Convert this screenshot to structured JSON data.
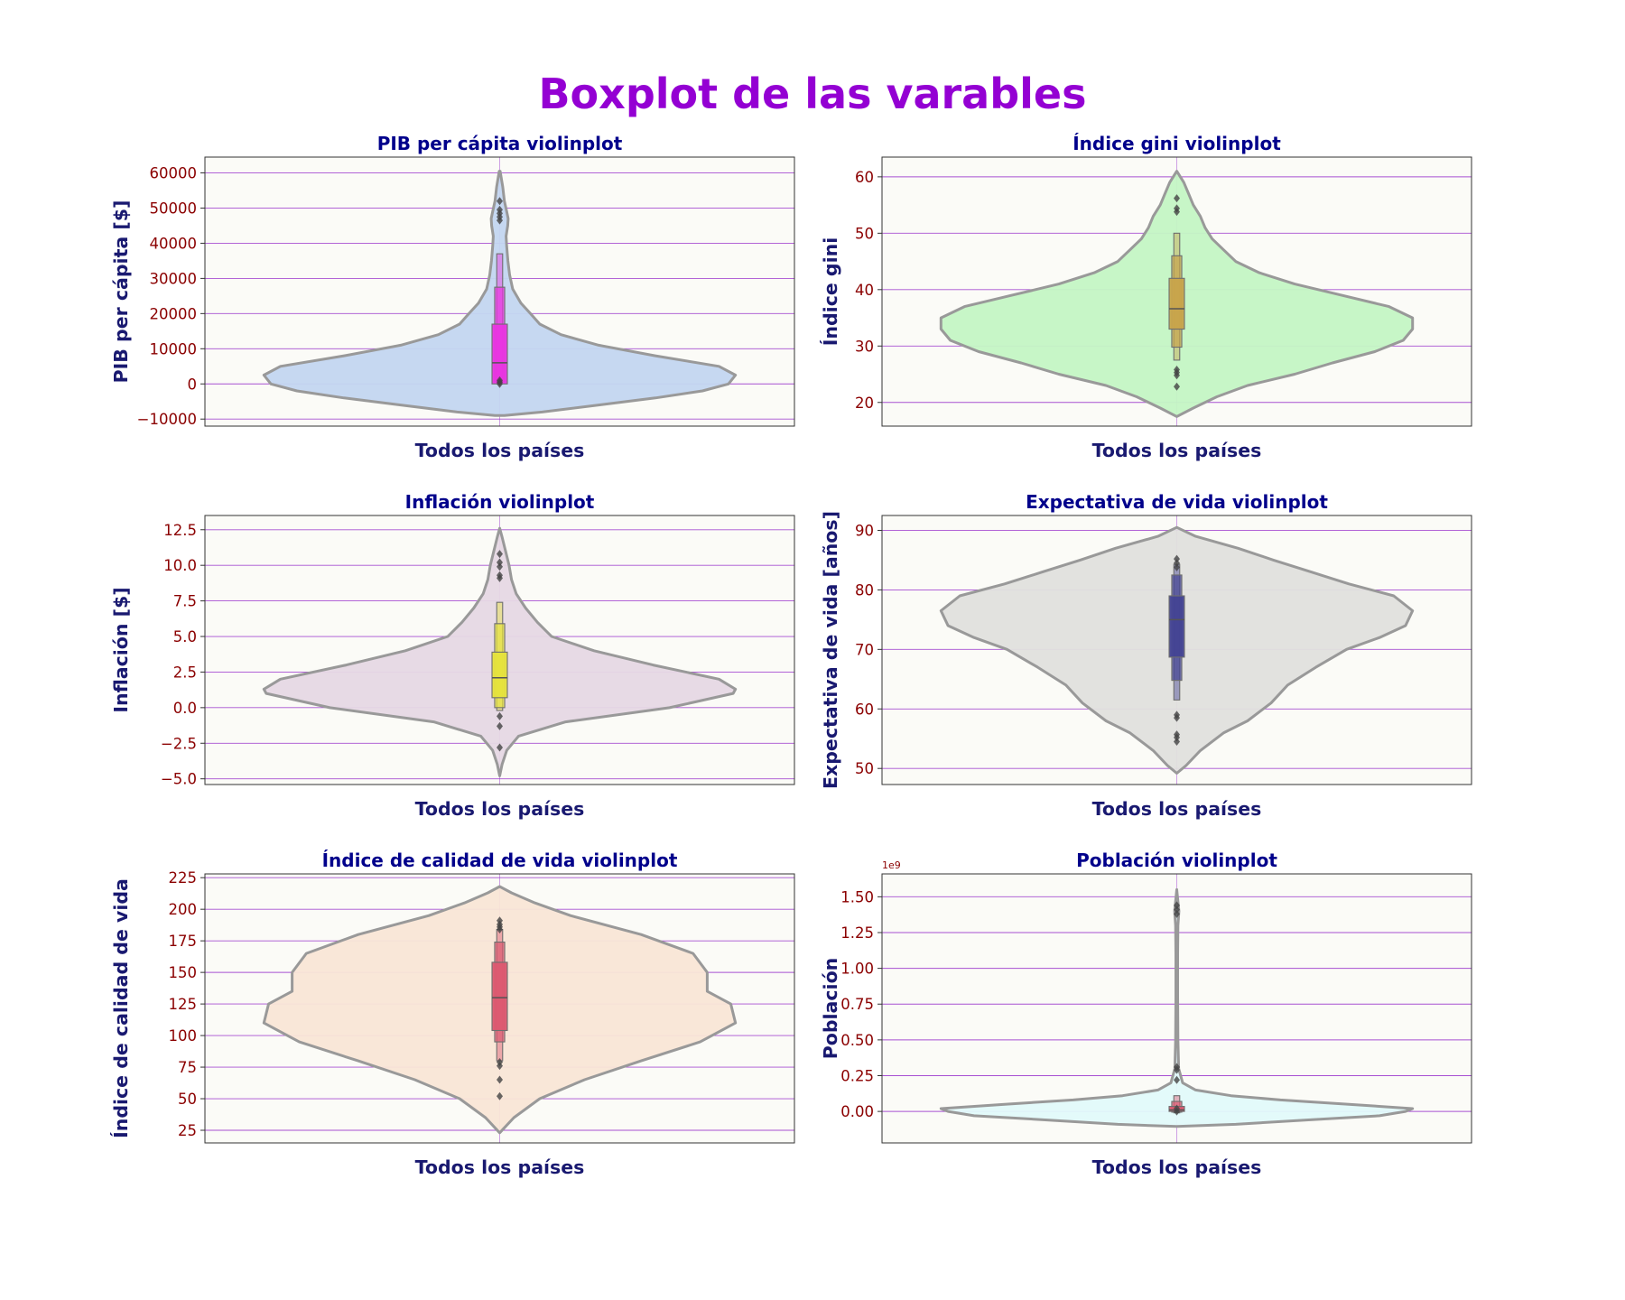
{
  "figure": {
    "title": "Boxplot de las varables",
    "title_color": "#9400d3",
    "panel_title_color": "#00008b",
    "axis_label_color": "#191970",
    "tick_color": "#8b0000",
    "grid_color": "#9932cc",
    "panel_bg": "#fbfbf7"
  },
  "chart_data": [
    {
      "type": "violin",
      "title": "PIB per cápita violinplot",
      "xlabel": "Todos los países",
      "ylabel": "PIB per cápita [$]",
      "ylim": [
        -12000,
        64500
      ],
      "yticks": [
        -10000,
        0,
        10000,
        20000,
        30000,
        40000,
        50000,
        60000
      ],
      "tick_labels": [
        "−10000",
        "0",
        "10000",
        "20000",
        "30000",
        "40000",
        "50000",
        "60000"
      ],
      "offset_label": "",
      "violin_color": "#c3d6f0",
      "box_color": "#e935e0",
      "violin_shape": [
        [
          -9000,
          0.02
        ],
        [
          -8000,
          0.18
        ],
        [
          -6000,
          0.42
        ],
        [
          -4000,
          0.66
        ],
        [
          -2000,
          0.86
        ],
        [
          0,
          0.97
        ],
        [
          2500,
          1.0
        ],
        [
          5000,
          0.93
        ],
        [
          8000,
          0.66
        ],
        [
          11000,
          0.42
        ],
        [
          14000,
          0.26
        ],
        [
          17000,
          0.17
        ],
        [
          20000,
          0.13
        ],
        [
          23000,
          0.09
        ],
        [
          27000,
          0.055
        ],
        [
          31000,
          0.042
        ],
        [
          35000,
          0.035
        ],
        [
          39000,
          0.03
        ],
        [
          42000,
          0.027
        ],
        [
          45000,
          0.034
        ],
        [
          47000,
          0.036
        ],
        [
          49000,
          0.03
        ],
        [
          52000,
          0.02
        ],
        [
          56000,
          0.013
        ],
        [
          60500,
          0.002
        ]
      ],
      "quantiles": [
        [
          0,
          17000,
          0.026
        ],
        [
          700,
          27500,
          0.017
        ],
        [
          300,
          37000,
          0.01
        ]
      ],
      "median": 6000,
      "outliers": [
        0,
        500,
        1000,
        46500,
        47500,
        48500,
        49500,
        52000
      ]
    },
    {
      "type": "violin",
      "title": "Índice gini violinplot",
      "xlabel": "Todos los países",
      "ylabel": "Índice gini",
      "ylim": [
        15.8,
        63.5
      ],
      "yticks": [
        20,
        30,
        40,
        50,
        60
      ],
      "tick_labels": [
        "20",
        "30",
        "40",
        "50",
        "60"
      ],
      "offset_label": "",
      "violin_color": "#c4f5c4",
      "box_color": "#c8a44b",
      "violin_shape": [
        [
          17.5,
          0.0
        ],
        [
          19,
          0.07
        ],
        [
          21,
          0.17
        ],
        [
          23,
          0.3
        ],
        [
          25,
          0.5
        ],
        [
          27,
          0.66
        ],
        [
          29,
          0.84
        ],
        [
          31,
          0.96
        ],
        [
          33,
          1.0
        ],
        [
          35,
          1.0
        ],
        [
          37,
          0.9
        ],
        [
          39,
          0.7
        ],
        [
          41,
          0.5
        ],
        [
          43,
          0.35
        ],
        [
          45,
          0.25
        ],
        [
          47,
          0.2
        ],
        [
          49,
          0.15
        ],
        [
          51,
          0.12
        ],
        [
          53,
          0.1
        ],
        [
          55,
          0.07
        ],
        [
          57,
          0.05
        ],
        [
          59,
          0.03
        ],
        [
          61,
          0.0
        ]
      ],
      "quantiles": [
        [
          33,
          42,
          0.026
        ],
        [
          29.8,
          46,
          0.017
        ],
        [
          27.5,
          50,
          0.01
        ]
      ],
      "median": 36.6,
      "outliers": [
        22.8,
        24.8,
        25.3,
        25.8,
        53.8,
        54.4,
        56.2
      ]
    },
    {
      "type": "violin",
      "title": "Inflación violinplot",
      "xlabel": "Todos los países",
      "ylabel": "Inflación [$]",
      "ylim": [
        -5.4,
        13.5
      ],
      "yticks": [
        -5.0,
        -2.5,
        0.0,
        2.5,
        5.0,
        7.5,
        10.0,
        12.5
      ],
      "tick_labels": [
        "−5.0",
        "−2.5",
        "0.0",
        "2.5",
        "5.0",
        "7.5",
        "10.0",
        "12.5"
      ],
      "offset_label": "",
      "violin_color": "#e6d8e4",
      "box_color": "#e6e33c",
      "violin_shape": [
        [
          -4.8,
          0.0
        ],
        [
          -4.0,
          0.01
        ],
        [
          -3.0,
          0.03
        ],
        [
          -2.0,
          0.08
        ],
        [
          -1.0,
          0.28
        ],
        [
          0.0,
          0.72
        ],
        [
          1.0,
          0.99
        ],
        [
          1.3,
          1.0
        ],
        [
          2.0,
          0.93
        ],
        [
          3.0,
          0.65
        ],
        [
          4.0,
          0.4
        ],
        [
          5.0,
          0.22
        ],
        [
          6.0,
          0.16
        ],
        [
          7.0,
          0.11
        ],
        [
          8.0,
          0.07
        ],
        [
          9.0,
          0.05
        ],
        [
          10.0,
          0.04
        ],
        [
          11.0,
          0.025
        ],
        [
          12.0,
          0.01
        ],
        [
          12.6,
          0.0
        ]
      ],
      "quantiles": [
        [
          0.7,
          3.9,
          0.026
        ],
        [
          0.0,
          5.9,
          0.017
        ],
        [
          -0.2,
          7.4,
          0.01
        ]
      ],
      "median": 2.1,
      "outliers": [
        -2.8,
        -1.3,
        -0.6,
        9.1,
        9.3,
        9.9,
        10.2,
        10.8
      ]
    },
    {
      "type": "violin",
      "title": "Expectativa de vida violinplot",
      "xlabel": "Todos los países",
      "ylabel": "Expectativa de vida [años]",
      "ylim": [
        47.3,
        92.5
      ],
      "yticks": [
        50,
        60,
        70,
        80,
        90
      ],
      "tick_labels": [
        "50",
        "60",
        "70",
        "80",
        "90"
      ],
      "offset_label": "",
      "violin_color": "#e0e0dd",
      "box_color": "#434393",
      "violin_shape": [
        [
          49.2,
          0.0
        ],
        [
          50.5,
          0.04
        ],
        [
          53,
          0.1
        ],
        [
          56,
          0.2
        ],
        [
          58,
          0.3
        ],
        [
          61,
          0.4
        ],
        [
          64,
          0.47
        ],
        [
          67,
          0.59
        ],
        [
          70,
          0.72
        ],
        [
          72,
          0.86
        ],
        [
          74,
          0.97
        ],
        [
          76.5,
          1.0
        ],
        [
          79,
          0.92
        ],
        [
          81,
          0.73
        ],
        [
          83,
          0.57
        ],
        [
          85,
          0.41
        ],
        [
          87,
          0.26
        ],
        [
          89,
          0.08
        ],
        [
          90.5,
          0.0
        ]
      ],
      "quantiles": [
        [
          68.7,
          79,
          0.026
        ],
        [
          64.8,
          82.5,
          0.017
        ],
        [
          61.5,
          84.3,
          0.01
        ]
      ],
      "median": 75,
      "outliers": [
        54.5,
        55.2,
        55.7,
        58.5,
        59,
        83.8,
        84.5,
        85.2
      ]
    },
    {
      "type": "violin",
      "title": "Índice de calidad de vida violinplot",
      "xlabel": "Todos los países",
      "ylabel": "Índice de calidad de vida",
      "ylim": [
        15,
        228
      ],
      "yticks": [
        25,
        50,
        75,
        100,
        125,
        150,
        175,
        200,
        225
      ],
      "tick_labels": [
        "25",
        "50",
        "75",
        "100",
        "125",
        "150",
        "175",
        "200",
        "225"
      ],
      "offset_label": "",
      "violin_color": "#f9e6d6",
      "box_color": "#dc5870",
      "violin_shape": [
        [
          23,
          0.0
        ],
        [
          35,
          0.06
        ],
        [
          50,
          0.17
        ],
        [
          65,
          0.36
        ],
        [
          80,
          0.6
        ],
        [
          95,
          0.85
        ],
        [
          110,
          1.0
        ],
        [
          125,
          0.98
        ],
        [
          135,
          0.88
        ],
        [
          150,
          0.88
        ],
        [
          165,
          0.82
        ],
        [
          180,
          0.6
        ],
        [
          195,
          0.3
        ],
        [
          205,
          0.15
        ],
        [
          213,
          0.05
        ],
        [
          218,
          0.0
        ]
      ],
      "quantiles": [
        [
          104,
          158,
          0.026
        ],
        [
          95,
          174,
          0.017
        ],
        [
          80,
          184,
          0.01
        ]
      ],
      "median": 130,
      "outliers": [
        52,
        65,
        76,
        79,
        184,
        186,
        188,
        191
      ]
    },
    {
      "type": "violin",
      "title": "Población violinplot",
      "xlabel": "Todos los países",
      "ylabel": "Población",
      "ylim": [
        -0.22,
        1.66
      ],
      "yticks": [
        0.0,
        0.25,
        0.5,
        0.75,
        1.0,
        1.25,
        1.5
      ],
      "tick_labels": [
        "0.00",
        "0.25",
        "0.50",
        "0.75",
        "1.00",
        "1.25",
        "1.50"
      ],
      "offset_label": "1e9",
      "violin_color": "#e2fafa",
      "box_color": "#dc5870",
      "violin_shape": [
        [
          -0.105,
          0.0
        ],
        [
          -0.09,
          0.25
        ],
        [
          -0.06,
          0.55
        ],
        [
          -0.03,
          0.86
        ],
        [
          0.0,
          0.97
        ],
        [
          0.02,
          1.0
        ],
        [
          0.05,
          0.73
        ],
        [
          0.08,
          0.44
        ],
        [
          0.11,
          0.23
        ],
        [
          0.15,
          0.08
        ],
        [
          0.2,
          0.025
        ],
        [
          0.3,
          0.008
        ],
        [
          0.5,
          0.005
        ],
        [
          0.8,
          0.004
        ],
        [
          1.1,
          0.004
        ],
        [
          1.3,
          0.005
        ],
        [
          1.4,
          0.009
        ],
        [
          1.45,
          0.006
        ],
        [
          1.55,
          0.0
        ]
      ],
      "quantiles": [
        [
          0.0,
          0.035,
          0.026
        ],
        [
          -0.005,
          0.07,
          0.017
        ],
        [
          -0.01,
          0.11,
          0.01
        ]
      ],
      "median": 0.01,
      "outliers": [
        0.0,
        0.02,
        0.22,
        0.29,
        0.31,
        1.38,
        1.41,
        1.44
      ]
    }
  ]
}
